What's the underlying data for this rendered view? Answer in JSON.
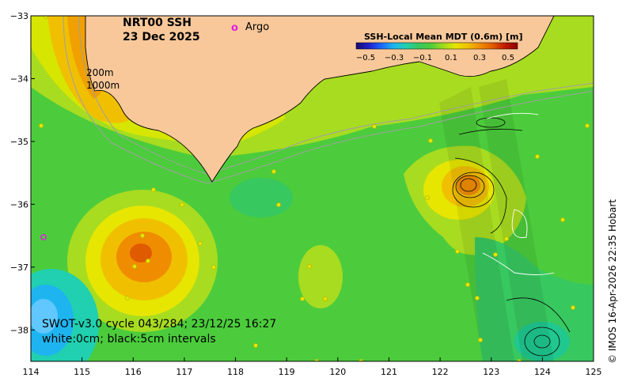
{
  "title": {
    "line1": "NRT00 SSH",
    "line2": "23 Dec 2025"
  },
  "legend": {
    "marker": "o",
    "label": "Argo",
    "marker_color": "#e020e0"
  },
  "isobaths": [
    "200m",
    "1000m"
  ],
  "colorbar": {
    "label": "SSH-Local Mean MDT (0.6m) [m]",
    "ticks": [
      "−0.5",
      "−0.3",
      "−0.1",
      "0.1",
      "0.3",
      "0.5"
    ],
    "colors": [
      "#1a0b6e",
      "#2020c8",
      "#1e64ff",
      "#1eb4f0",
      "#20d0b0",
      "#38c860",
      "#4ccc3c",
      "#9edc1e",
      "#e6e600",
      "#f0c000",
      "#f08c00",
      "#e05a00",
      "#c01800",
      "#8c0000"
    ]
  },
  "caption": {
    "line1": "SWOT-v3.0 cycle 043/284; 23/12/25 16:27",
    "line2": "white:0cm; black:5cm intervals"
  },
  "credit": "© IMOS 16-Apr-2026 22:35 Hobart",
  "axes": {
    "lon_ticks": [
      "114",
      "115",
      "116",
      "117",
      "118",
      "119",
      "120",
      "121",
      "122",
      "123",
      "124",
      "125"
    ],
    "lat_ticks": [
      "−33",
      "−34",
      "−35",
      "−36",
      "−37",
      "−38"
    ],
    "lon_range": [
      114,
      125
    ],
    "lat_range": [
      -38.5,
      -33
    ]
  },
  "colors": {
    "land": "#f9c89a",
    "ocean_base": "#4ccc3c"
  }
}
